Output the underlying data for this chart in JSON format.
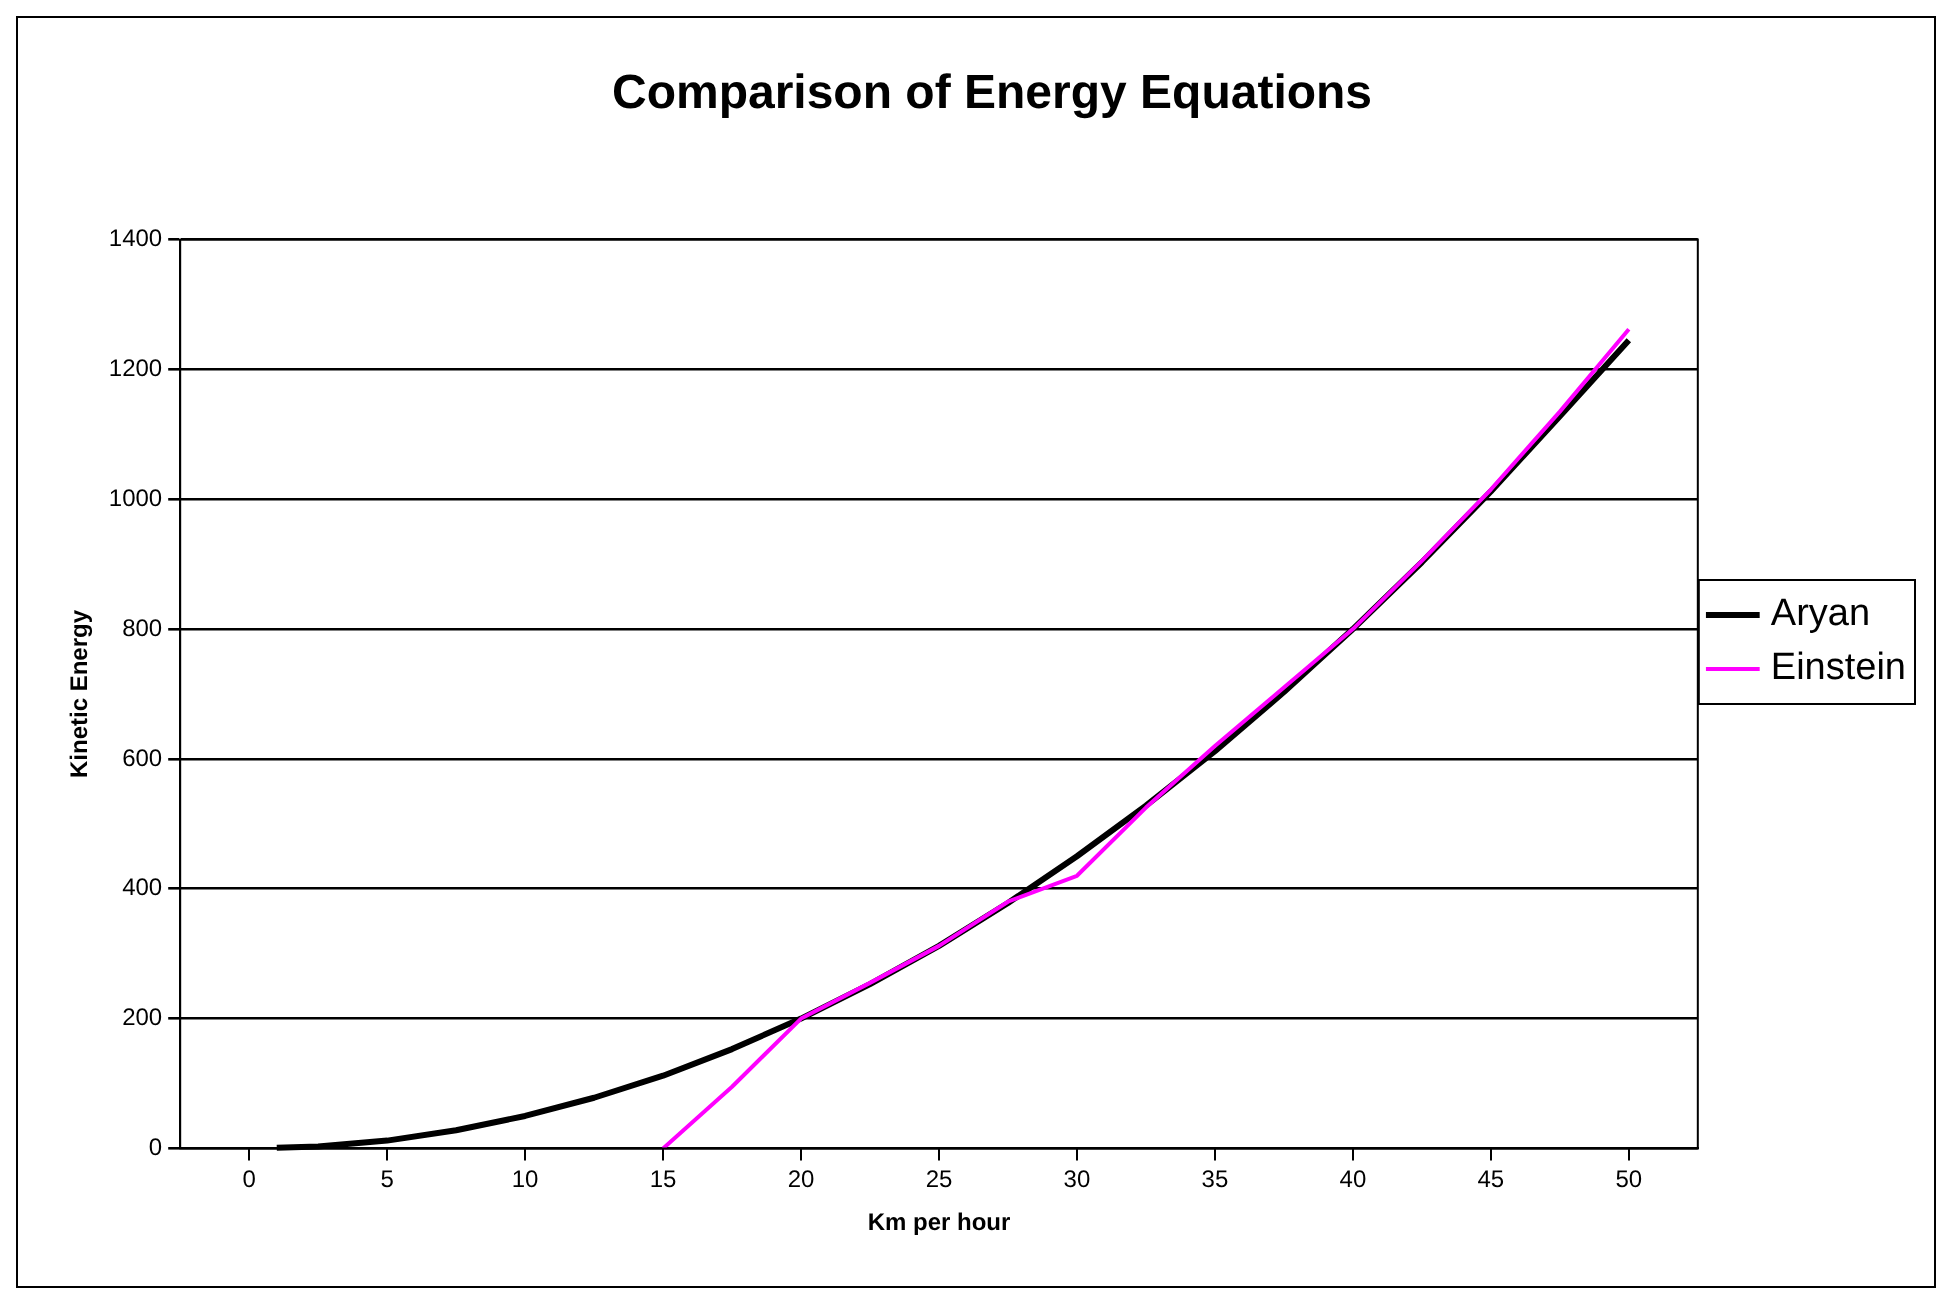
{
  "chart_data": {
    "type": "line",
    "title": "Comparison of Energy Equations",
    "xlabel": "Km per hour",
    "ylabel": "Kinetic Energy",
    "xlim": [
      -2.5,
      52.5
    ],
    "xticks": [
      0,
      5,
      10,
      15,
      20,
      25,
      30,
      35,
      40,
      45,
      50
    ],
    "ylim": [
      0,
      1400
    ],
    "yticks": [
      0,
      200,
      400,
      600,
      800,
      1000,
      1200,
      1400
    ],
    "series": [
      {
        "name": "Aryan",
        "color": "#000000",
        "x": [
          1,
          2.5,
          5,
          7.5,
          10,
          12.5,
          15,
          17.5,
          20,
          22.5,
          25,
          27.5,
          30,
          32.5,
          35,
          37.5,
          40,
          42.5,
          45,
          47.5,
          50
        ],
        "values": [
          1,
          3,
          12,
          28,
          50,
          78,
          112,
          153,
          200,
          253,
          312,
          378,
          450,
          528,
          612,
          703,
          800,
          903,
          1012,
          1128,
          1245
        ]
      },
      {
        "name": "Einstein",
        "color": "#ff00ff",
        "x": [
          15,
          17.5,
          20,
          22.5,
          25,
          27.5,
          30,
          32.5,
          35,
          37.5,
          40,
          42.5,
          45,
          47.5,
          50
        ],
        "values": [
          0,
          95,
          200,
          255,
          312,
          380,
          420,
          525,
          620,
          710,
          800,
          905,
          1015,
          1135,
          1262
        ]
      }
    ],
    "grid": "y",
    "legend": "right",
    "marker": "none",
    "line_style": "solid"
  }
}
